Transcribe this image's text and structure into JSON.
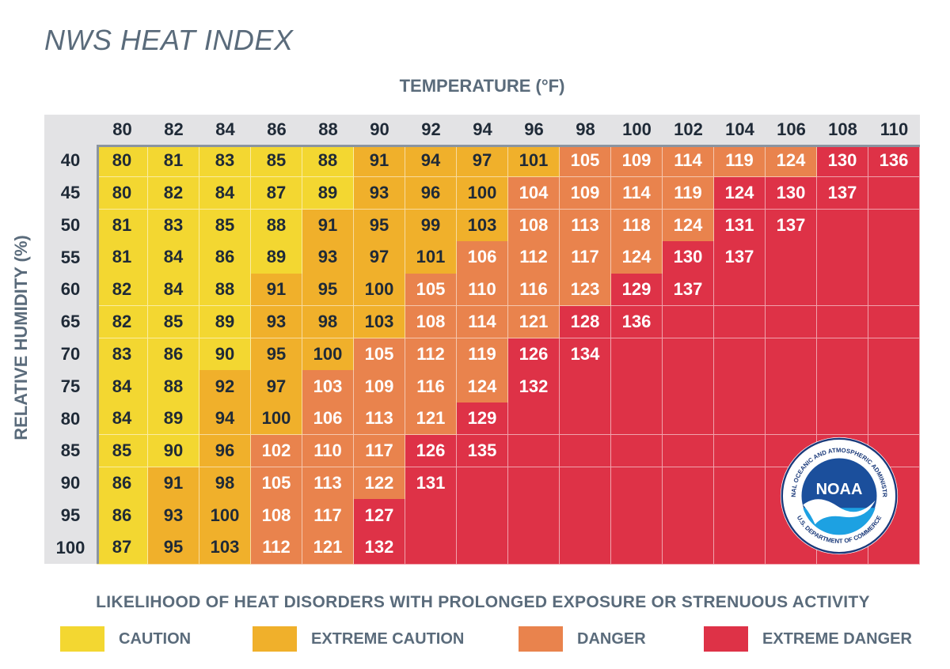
{
  "title": "NWS HEAT INDEX",
  "temperature_label": "TEMPERATURE (°F)",
  "humidity_label": "RELATIVE HUMIDITY (%)",
  "legend": {
    "title": "LIKELIHOOD OF HEAT DISORDERS WITH PROLONGED EXPOSURE OR STRENUOUS ACTIVITY",
    "items": [
      {
        "label": "CAUTION",
        "color": "#f3d731"
      },
      {
        "label": "EXTREME CAUTION",
        "color": "#f0b02b"
      },
      {
        "label": "DANGER",
        "color": "#e9834d"
      },
      {
        "label": "EXTREME DANGER",
        "color": "#de3247"
      }
    ]
  },
  "logo": {
    "name": "NOAA",
    "ring_text": "NATIONAL OCEANIC AND ATMOSPHERIC ADMINISTRATION",
    "bottom_text": "U.S. DEPARTMENT OF COMMERCE"
  },
  "chart_data": {
    "type": "table",
    "title": "NWS HEAT INDEX",
    "xlabel": "TEMPERATURE (°F)",
    "ylabel": "RELATIVE HUMIDITY (%)",
    "x": [
      80,
      82,
      84,
      86,
      88,
      90,
      92,
      94,
      96,
      98,
      100,
      102,
      104,
      106,
      108,
      110
    ],
    "y": [
      40,
      45,
      50,
      55,
      60,
      65,
      70,
      75,
      80,
      85,
      90,
      95,
      100
    ],
    "values": [
      [
        80,
        81,
        83,
        85,
        88,
        91,
        94,
        97,
        101,
        105,
        109,
        114,
        119,
        124,
        130,
        136
      ],
      [
        80,
        82,
        84,
        87,
        89,
        93,
        96,
        100,
        104,
        109,
        114,
        119,
        124,
        130,
        137,
        null
      ],
      [
        81,
        83,
        85,
        88,
        91,
        95,
        99,
        103,
        108,
        113,
        118,
        124,
        131,
        137,
        null,
        null
      ],
      [
        81,
        84,
        86,
        89,
        93,
        97,
        101,
        106,
        112,
        117,
        124,
        130,
        137,
        null,
        null,
        null
      ],
      [
        82,
        84,
        88,
        91,
        95,
        100,
        105,
        110,
        116,
        123,
        129,
        137,
        null,
        null,
        null,
        null
      ],
      [
        82,
        85,
        89,
        93,
        98,
        103,
        108,
        114,
        121,
        128,
        136,
        null,
        null,
        null,
        null,
        null
      ],
      [
        83,
        86,
        90,
        95,
        100,
        105,
        112,
        119,
        126,
        134,
        null,
        null,
        null,
        null,
        null,
        null
      ],
      [
        84,
        88,
        92,
        97,
        103,
        109,
        116,
        124,
        132,
        null,
        null,
        null,
        null,
        null,
        null,
        null
      ],
      [
        84,
        89,
        94,
        100,
        106,
        113,
        121,
        129,
        null,
        null,
        null,
        null,
        null,
        null,
        null,
        null
      ],
      [
        85,
        90,
        96,
        102,
        110,
        117,
        126,
        135,
        null,
        null,
        null,
        null,
        null,
        null,
        null,
        null
      ],
      [
        86,
        91,
        98,
        105,
        113,
        122,
        131,
        null,
        null,
        null,
        null,
        null,
        null,
        null,
        null,
        null
      ],
      [
        86,
        93,
        100,
        108,
        117,
        127,
        null,
        null,
        null,
        null,
        null,
        null,
        null,
        null,
        null,
        null
      ],
      [
        87,
        95,
        103,
        112,
        121,
        132,
        null,
        null,
        null,
        null,
        null,
        null,
        null,
        null,
        null,
        null
      ]
    ],
    "categories": [
      [
        0,
        0,
        0,
        0,
        0,
        1,
        1,
        1,
        1,
        2,
        2,
        2,
        2,
        2,
        3,
        3
      ],
      [
        0,
        0,
        0,
        0,
        0,
        1,
        1,
        1,
        2,
        2,
        2,
        2,
        3,
        3,
        3,
        3
      ],
      [
        0,
        0,
        0,
        0,
        1,
        1,
        1,
        1,
        2,
        2,
        2,
        2,
        3,
        3,
        3,
        3
      ],
      [
        0,
        0,
        0,
        0,
        1,
        1,
        1,
        2,
        2,
        2,
        2,
        3,
        3,
        3,
        3,
        3
      ],
      [
        0,
        0,
        0,
        1,
        1,
        1,
        2,
        2,
        2,
        2,
        3,
        3,
        3,
        3,
        3,
        3
      ],
      [
        0,
        0,
        0,
        1,
        1,
        1,
        2,
        2,
        2,
        3,
        3,
        3,
        3,
        3,
        3,
        3
      ],
      [
        0,
        0,
        0,
        1,
        1,
        2,
        2,
        2,
        3,
        3,
        3,
        3,
        3,
        3,
        3,
        3
      ],
      [
        0,
        0,
        1,
        1,
        2,
        2,
        2,
        2,
        3,
        3,
        3,
        3,
        3,
        3,
        3,
        3
      ],
      [
        0,
        0,
        1,
        1,
        2,
        2,
        2,
        3,
        3,
        3,
        3,
        3,
        3,
        3,
        3,
        3
      ],
      [
        0,
        0,
        1,
        2,
        2,
        2,
        3,
        3,
        3,
        3,
        3,
        3,
        3,
        3,
        3,
        3
      ],
      [
        0,
        1,
        1,
        2,
        2,
        2,
        3,
        3,
        3,
        3,
        3,
        3,
        3,
        3,
        3,
        3
      ],
      [
        0,
        1,
        1,
        2,
        2,
        3,
        3,
        3,
        3,
        3,
        3,
        3,
        3,
        3,
        3,
        3
      ],
      [
        0,
        1,
        1,
        2,
        2,
        3,
        3,
        3,
        3,
        3,
        3,
        3,
        3,
        3,
        3,
        3
      ]
    ]
  }
}
